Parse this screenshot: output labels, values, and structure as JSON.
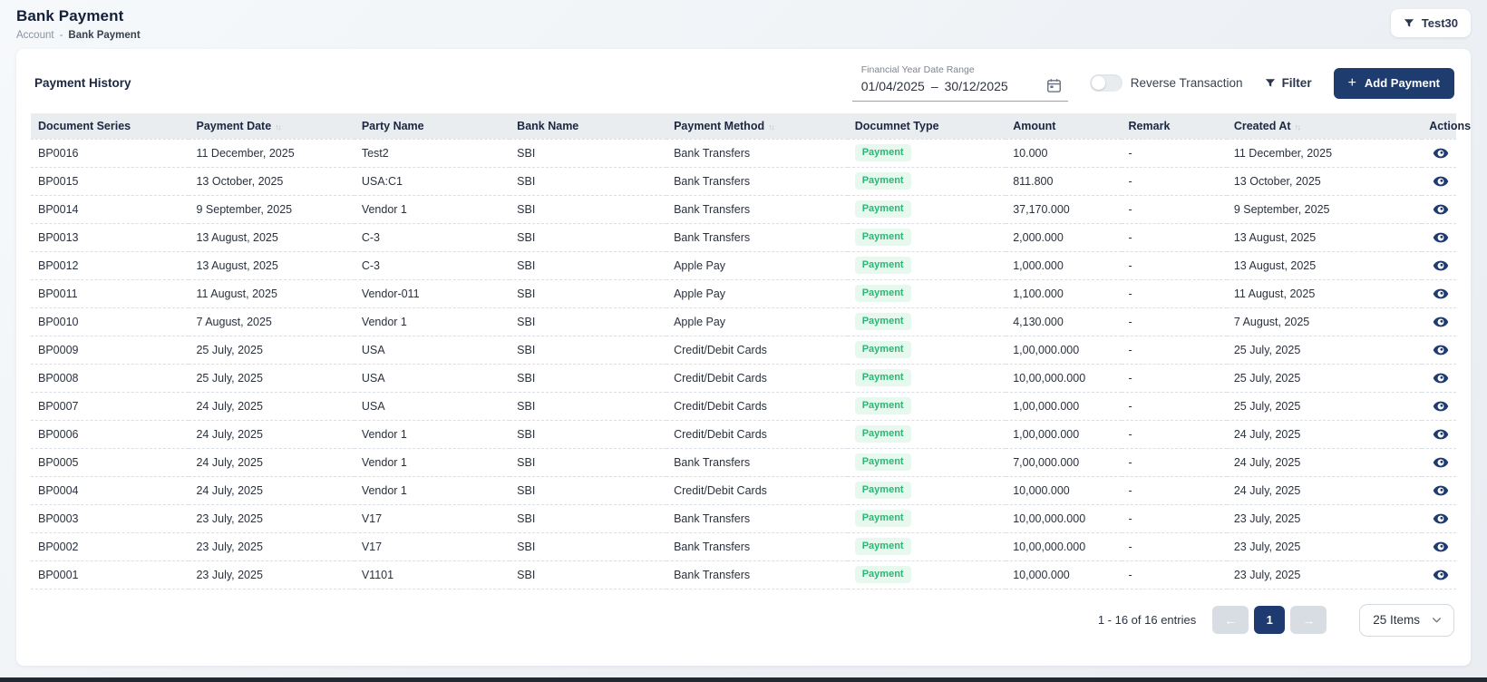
{
  "page": {
    "title": "Bank Payment",
    "breadcrumb": {
      "parent": "Account",
      "separator": "-",
      "current": "Bank Payment"
    },
    "company_button_label": "Test30"
  },
  "card": {
    "title": "Payment History",
    "date_range": {
      "label": "Financial Year Date Range",
      "from": "01/04/2025",
      "separator": "–",
      "to": "30/12/2025"
    },
    "reverse_toggle_label": "Reverse Transaction",
    "reverse_toggle_state": "off",
    "filter_label": "Filter",
    "add_button_label": "Add Payment"
  },
  "icons": {
    "sort": "↑↓",
    "plus": "+",
    "prev_arrow": "←",
    "next_arrow": "→"
  },
  "colors": {
    "accent_navy": "#1f3c6f",
    "badge_green_text": "#2bb673",
    "badge_green_bg": "#e7f8ef",
    "table_header_bg": "#e9edf0"
  },
  "table": {
    "columns": [
      {
        "key": "document_series",
        "label": "Document Series",
        "sortable": false
      },
      {
        "key": "payment_date",
        "label": "Payment Date",
        "sortable": true
      },
      {
        "key": "party_name",
        "label": "Party Name",
        "sortable": false
      },
      {
        "key": "bank_name",
        "label": "Bank Name",
        "sortable": false
      },
      {
        "key": "payment_method",
        "label": "Payment Method",
        "sortable": true
      },
      {
        "key": "document_type",
        "label": "Documnet Type",
        "sortable": false
      },
      {
        "key": "amount",
        "label": "Amount",
        "sortable": false
      },
      {
        "key": "remark",
        "label": "Remark",
        "sortable": false
      },
      {
        "key": "created_at",
        "label": "Created At",
        "sortable": true
      },
      {
        "key": "actions",
        "label": "Actions",
        "sortable": false
      }
    ],
    "rows": [
      {
        "document_series": "BP0016",
        "payment_date": "11 December, 2025",
        "party_name": "Test2",
        "bank_name": "SBI",
        "payment_method": "Bank Transfers",
        "document_type": "Payment",
        "amount": "10.000",
        "remark": "-",
        "created_at": "11 December, 2025"
      },
      {
        "document_series": "BP0015",
        "payment_date": "13 October, 2025",
        "party_name": "USA:C1",
        "bank_name": "SBI",
        "payment_method": "Bank Transfers",
        "document_type": "Payment",
        "amount": "811.800",
        "remark": "-",
        "created_at": "13 October, 2025"
      },
      {
        "document_series": "BP0014",
        "payment_date": "9 September, 2025",
        "party_name": "Vendor 1",
        "bank_name": "SBI",
        "payment_method": "Bank Transfers",
        "document_type": "Payment",
        "amount": "37,170.000",
        "remark": "-",
        "created_at": "9 September, 2025"
      },
      {
        "document_series": "BP0013",
        "payment_date": "13 August, 2025",
        "party_name": "C-3",
        "bank_name": "SBI",
        "payment_method": "Bank Transfers",
        "document_type": "Payment",
        "amount": "2,000.000",
        "remark": "-",
        "created_at": "13 August, 2025"
      },
      {
        "document_series": "BP0012",
        "payment_date": "13 August, 2025",
        "party_name": "C-3",
        "bank_name": "SBI",
        "payment_method": "Apple Pay",
        "document_type": "Payment",
        "amount": "1,000.000",
        "remark": "-",
        "created_at": "13 August, 2025"
      },
      {
        "document_series": "BP0011",
        "payment_date": "11 August, 2025",
        "party_name": "Vendor-011",
        "bank_name": "SBI",
        "payment_method": "Apple Pay",
        "document_type": "Payment",
        "amount": "1,100.000",
        "remark": "-",
        "created_at": "11 August, 2025"
      },
      {
        "document_series": "BP0010",
        "payment_date": "7 August, 2025",
        "party_name": "Vendor 1",
        "bank_name": "SBI",
        "payment_method": "Apple Pay",
        "document_type": "Payment",
        "amount": "4,130.000",
        "remark": "-",
        "created_at": "7 August, 2025"
      },
      {
        "document_series": "BP0009",
        "payment_date": "25 July, 2025",
        "party_name": "USA",
        "bank_name": "SBI",
        "payment_method": "Credit/Debit Cards",
        "document_type": "Payment",
        "amount": "1,00,000.000",
        "remark": "-",
        "created_at": "25 July, 2025"
      },
      {
        "document_series": "BP0008",
        "payment_date": "25 July, 2025",
        "party_name": "USA",
        "bank_name": "SBI",
        "payment_method": "Credit/Debit Cards",
        "document_type": "Payment",
        "amount": "10,00,000.000",
        "remark": "-",
        "created_at": "25 July, 2025"
      },
      {
        "document_series": "BP0007",
        "payment_date": "24 July, 2025",
        "party_name": "USA",
        "bank_name": "SBI",
        "payment_method": "Credit/Debit Cards",
        "document_type": "Payment",
        "amount": "1,00,000.000",
        "remark": "-",
        "created_at": "25 July, 2025"
      },
      {
        "document_series": "BP0006",
        "payment_date": "24 July, 2025",
        "party_name": "Vendor 1",
        "bank_name": "SBI",
        "payment_method": "Credit/Debit Cards",
        "document_type": "Payment",
        "amount": "1,00,000.000",
        "remark": "-",
        "created_at": "24 July, 2025"
      },
      {
        "document_series": "BP0005",
        "payment_date": "24 July, 2025",
        "party_name": "Vendor 1",
        "bank_name": "SBI",
        "payment_method": "Bank Transfers",
        "document_type": "Payment",
        "amount": "7,00,000.000",
        "remark": "-",
        "created_at": "24 July, 2025"
      },
      {
        "document_series": "BP0004",
        "payment_date": "24 July, 2025",
        "party_name": "Vendor 1",
        "bank_name": "SBI",
        "payment_method": "Credit/Debit Cards",
        "document_type": "Payment",
        "amount": "10,000.000",
        "remark": "-",
        "created_at": "24 July, 2025"
      },
      {
        "document_series": "BP0003",
        "payment_date": "23 July, 2025",
        "party_name": "V17",
        "bank_name": "SBI",
        "payment_method": "Bank Transfers",
        "document_type": "Payment",
        "amount": "10,00,000.000",
        "remark": "-",
        "created_at": "23 July, 2025"
      },
      {
        "document_series": "BP0002",
        "payment_date": "23 July, 2025",
        "party_name": "V17",
        "bank_name": "SBI",
        "payment_method": "Bank Transfers",
        "document_type": "Payment",
        "amount": "10,00,000.000",
        "remark": "-",
        "created_at": "23 July, 2025"
      },
      {
        "document_series": "BP0001",
        "payment_date": "23 July, 2025",
        "party_name": "V1101",
        "bank_name": "SBI",
        "payment_method": "Bank Transfers",
        "document_type": "Payment",
        "amount": "10,000.000",
        "remark": "-",
        "created_at": "23 July, 2025"
      }
    ]
  },
  "pagination": {
    "summary": "1 - 16 of 16 entries",
    "current_page": "1",
    "page_size": "25 Items"
  }
}
